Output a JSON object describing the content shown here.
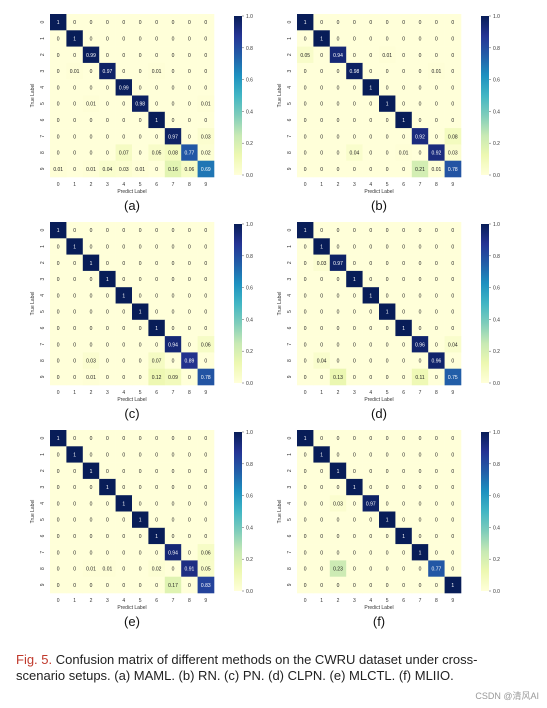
{
  "caption": {
    "label": "Fig. 5.",
    "text": "Confusion matrix of different methods on the CWRU dataset under cross-scenario setups. (a) MAML. (b) RN. (c) PN. (d) CLPN. (e) MLCTL. (f) MLIIO."
  },
  "watermark": "CSDN @清风AI",
  "chart_data": [
    {
      "type": "heatmap",
      "panel_label": "(a)",
      "xlabel": "Predict Label",
      "ylabel": "True Label",
      "x_categories": [
        "0",
        "1",
        "2",
        "3",
        "4",
        "5",
        "6",
        "7",
        "8",
        "9"
      ],
      "y_categories": [
        "0",
        "1",
        "2",
        "3",
        "4",
        "5",
        "6",
        "7",
        "8",
        "9"
      ],
      "colorbar": {
        "min": 0.0,
        "max": 1.0,
        "ticks": [
          "0.0",
          "0.2",
          "0.4",
          "0.6",
          "0.8",
          "1.0"
        ]
      },
      "matrix": [
        [
          1,
          0,
          0,
          0,
          0,
          0,
          0,
          0,
          0,
          0
        ],
        [
          0,
          1,
          0,
          0,
          0,
          0,
          0,
          0,
          0,
          0
        ],
        [
          0,
          0,
          0.99,
          0,
          0,
          0,
          0,
          0,
          0,
          0
        ],
        [
          0,
          0.01,
          0,
          0.97,
          0,
          0,
          0.01,
          0,
          0,
          0
        ],
        [
          0,
          0,
          0,
          0,
          0.99,
          0,
          0,
          0,
          0,
          0
        ],
        [
          0,
          0,
          0.01,
          0,
          0,
          0.98,
          0,
          0,
          0,
          0.01
        ],
        [
          0,
          0,
          0,
          0,
          0,
          0,
          1,
          0,
          0,
          0
        ],
        [
          0,
          0,
          0,
          0,
          0,
          0,
          0,
          0.97,
          0,
          0.03
        ],
        [
          0,
          0,
          0,
          0,
          0.07,
          0,
          0.05,
          0.08,
          0.77,
          0.02
        ],
        [
          0.01,
          0,
          0.01,
          0.04,
          0.03,
          0.01,
          0,
          0.16,
          0.06,
          0.69
        ]
      ]
    },
    {
      "type": "heatmap",
      "panel_label": "(b)",
      "xlabel": "Predict Label",
      "ylabel": "True Label",
      "x_categories": [
        "0",
        "1",
        "2",
        "3",
        "4",
        "5",
        "6",
        "7",
        "8",
        "9"
      ],
      "y_categories": [
        "0",
        "1",
        "2",
        "3",
        "4",
        "5",
        "6",
        "7",
        "8",
        "9"
      ],
      "colorbar": {
        "min": 0.0,
        "max": 1.0,
        "ticks": [
          "0.0",
          "0.2",
          "0.4",
          "0.6",
          "0.8",
          "1.0"
        ]
      },
      "matrix": [
        [
          1,
          0,
          0,
          0,
          0,
          0,
          0,
          0,
          0,
          0
        ],
        [
          0,
          1,
          0,
          0,
          0,
          0,
          0,
          0,
          0,
          0
        ],
        [
          0.05,
          0,
          0.94,
          0,
          0,
          0.01,
          0,
          0,
          0,
          0
        ],
        [
          0,
          0,
          0,
          0.98,
          0,
          0,
          0,
          0,
          0.01,
          0
        ],
        [
          0,
          0,
          0,
          0,
          1,
          0,
          0,
          0,
          0,
          0
        ],
        [
          0,
          0,
          0,
          0,
          0,
          1,
          0,
          0,
          0,
          0
        ],
        [
          0,
          0,
          0,
          0,
          0,
          0,
          1,
          0,
          0,
          0
        ],
        [
          0,
          0,
          0,
          0,
          0,
          0,
          0,
          0.92,
          0,
          0.08
        ],
        [
          0,
          0,
          0,
          0.04,
          0,
          0,
          0.01,
          0,
          0.92,
          0.03
        ],
        [
          0,
          0,
          0,
          0,
          0,
          0,
          0,
          0.21,
          0.01,
          0.78
        ]
      ]
    },
    {
      "type": "heatmap",
      "panel_label": "(c)",
      "xlabel": "Predict Label",
      "ylabel": "True Label",
      "x_categories": [
        "0",
        "1",
        "2",
        "3",
        "4",
        "5",
        "6",
        "7",
        "8",
        "9"
      ],
      "y_categories": [
        "0",
        "1",
        "2",
        "3",
        "4",
        "5",
        "6",
        "7",
        "8",
        "9"
      ],
      "colorbar": {
        "min": 0.0,
        "max": 1.0,
        "ticks": [
          "0.0",
          "0.2",
          "0.4",
          "0.6",
          "0.8",
          "1.0"
        ]
      },
      "matrix": [
        [
          1,
          0,
          0,
          0,
          0,
          0,
          0,
          0,
          0,
          0
        ],
        [
          0,
          1,
          0,
          0,
          0,
          0,
          0,
          0,
          0,
          0
        ],
        [
          0,
          0,
          1,
          0,
          0,
          0,
          0,
          0,
          0,
          0
        ],
        [
          0,
          0,
          0,
          1,
          0,
          0,
          0,
          0,
          0,
          0
        ],
        [
          0,
          0,
          0,
          0,
          1,
          0,
          0,
          0,
          0,
          0
        ],
        [
          0,
          0,
          0,
          0,
          0,
          1,
          0,
          0,
          0,
          0
        ],
        [
          0,
          0,
          0,
          0,
          0,
          0,
          1,
          0,
          0,
          0
        ],
        [
          0,
          0,
          0,
          0,
          0,
          0,
          0,
          0.94,
          0,
          0.06
        ],
        [
          0,
          0,
          0.03,
          0,
          0,
          0,
          0.07,
          0,
          0.89,
          0
        ],
        [
          0,
          0,
          0.01,
          0,
          0,
          0,
          0.12,
          0.09,
          0,
          0.78
        ]
      ]
    },
    {
      "type": "heatmap",
      "panel_label": "(d)",
      "xlabel": "Predict Label",
      "ylabel": "True Label",
      "x_categories": [
        "0",
        "1",
        "2",
        "3",
        "4",
        "5",
        "6",
        "7",
        "8",
        "9"
      ],
      "y_categories": [
        "0",
        "1",
        "2",
        "3",
        "4",
        "5",
        "6",
        "7",
        "8",
        "9"
      ],
      "colorbar": {
        "min": 0.0,
        "max": 1.0,
        "ticks": [
          "0.0",
          "0.2",
          "0.4",
          "0.6",
          "0.8",
          "1.0"
        ]
      },
      "matrix": [
        [
          1,
          0,
          0,
          0,
          0,
          0,
          0,
          0,
          0,
          0
        ],
        [
          0,
          1,
          0,
          0,
          0,
          0,
          0,
          0,
          0,
          0
        ],
        [
          0,
          0.03,
          0.97,
          0,
          0,
          0,
          0,
          0,
          0,
          0
        ],
        [
          0,
          0,
          0,
          1,
          0,
          0,
          0,
          0,
          0,
          0
        ],
        [
          0,
          0,
          0,
          0,
          1,
          0,
          0,
          0,
          0,
          0
        ],
        [
          0,
          0,
          0,
          0,
          0,
          1,
          0,
          0,
          0,
          0
        ],
        [
          0,
          0,
          0,
          0,
          0,
          0,
          1,
          0,
          0,
          0
        ],
        [
          0,
          0,
          0,
          0,
          0,
          0,
          0,
          0.96,
          0,
          0.04
        ],
        [
          0,
          0.04,
          0,
          0,
          0,
          0,
          0,
          0,
          0.96,
          0
        ],
        [
          0,
          0,
          0.13,
          0,
          0,
          0,
          0,
          0.11,
          0,
          0.75
        ]
      ]
    },
    {
      "type": "heatmap",
      "panel_label": "(e)",
      "xlabel": "Predict Label",
      "ylabel": "True Label",
      "x_categories": [
        "0",
        "1",
        "2",
        "3",
        "4",
        "5",
        "6",
        "7",
        "8",
        "9"
      ],
      "y_categories": [
        "0",
        "1",
        "2",
        "3",
        "4",
        "5",
        "6",
        "7",
        "8",
        "9"
      ],
      "colorbar": {
        "min": 0.0,
        "max": 1.0,
        "ticks": [
          "0.0",
          "0.2",
          "0.4",
          "0.6",
          "0.8",
          "1.0"
        ]
      },
      "matrix": [
        [
          1,
          0,
          0,
          0,
          0,
          0,
          0,
          0,
          0,
          0
        ],
        [
          0,
          1,
          0,
          0,
          0,
          0,
          0,
          0,
          0,
          0
        ],
        [
          0,
          0,
          1,
          0,
          0,
          0,
          0,
          0,
          0,
          0
        ],
        [
          0,
          0,
          0,
          1,
          0,
          0,
          0,
          0,
          0,
          0
        ],
        [
          0,
          0,
          0,
          0,
          1,
          0,
          0,
          0,
          0,
          0
        ],
        [
          0,
          0,
          0,
          0,
          0,
          1,
          0,
          0,
          0,
          0
        ],
        [
          0,
          0,
          0,
          0,
          0,
          0,
          1,
          0,
          0,
          0
        ],
        [
          0,
          0,
          0,
          0,
          0,
          0,
          0,
          0.94,
          0,
          0.06
        ],
        [
          0,
          0,
          0.01,
          0.01,
          0,
          0,
          0.02,
          0,
          0.91,
          0.05
        ],
        [
          0,
          0,
          0,
          0,
          0,
          0,
          0,
          0.17,
          0,
          0.83
        ]
      ]
    },
    {
      "type": "heatmap",
      "panel_label": "(f)",
      "xlabel": "Predict Label",
      "ylabel": "True Label",
      "x_categories": [
        "0",
        "1",
        "2",
        "3",
        "4",
        "5",
        "6",
        "7",
        "8",
        "9"
      ],
      "y_categories": [
        "0",
        "1",
        "2",
        "3",
        "4",
        "5",
        "6",
        "7",
        "8",
        "9"
      ],
      "colorbar": {
        "min": 0.0,
        "max": 1.0,
        "ticks": [
          "0.0",
          "0.2",
          "0.4",
          "0.6",
          "0.8",
          "1.0"
        ]
      },
      "matrix": [
        [
          1,
          0,
          0,
          0,
          0,
          0,
          0,
          0,
          0,
          0
        ],
        [
          0,
          1,
          0,
          0,
          0,
          0,
          0,
          0,
          0,
          0
        ],
        [
          0,
          0,
          1,
          0,
          0,
          0,
          0,
          0,
          0,
          0
        ],
        [
          0,
          0,
          0,
          1,
          0,
          0,
          0,
          0,
          0,
          0
        ],
        [
          0,
          0,
          0.03,
          0,
          0.97,
          0,
          0,
          0,
          0,
          0
        ],
        [
          0,
          0,
          0,
          0,
          0,
          1,
          0,
          0,
          0,
          0
        ],
        [
          0,
          0,
          0,
          0,
          0,
          0,
          1,
          0,
          0,
          0
        ],
        [
          0,
          0,
          0,
          0,
          0,
          0,
          0,
          1,
          0,
          0
        ],
        [
          0,
          0,
          0.23,
          0,
          0,
          0,
          0,
          0,
          0.77,
          0
        ],
        [
          0,
          0,
          0,
          0,
          0,
          0,
          0,
          0,
          0,
          1
        ]
      ]
    }
  ]
}
